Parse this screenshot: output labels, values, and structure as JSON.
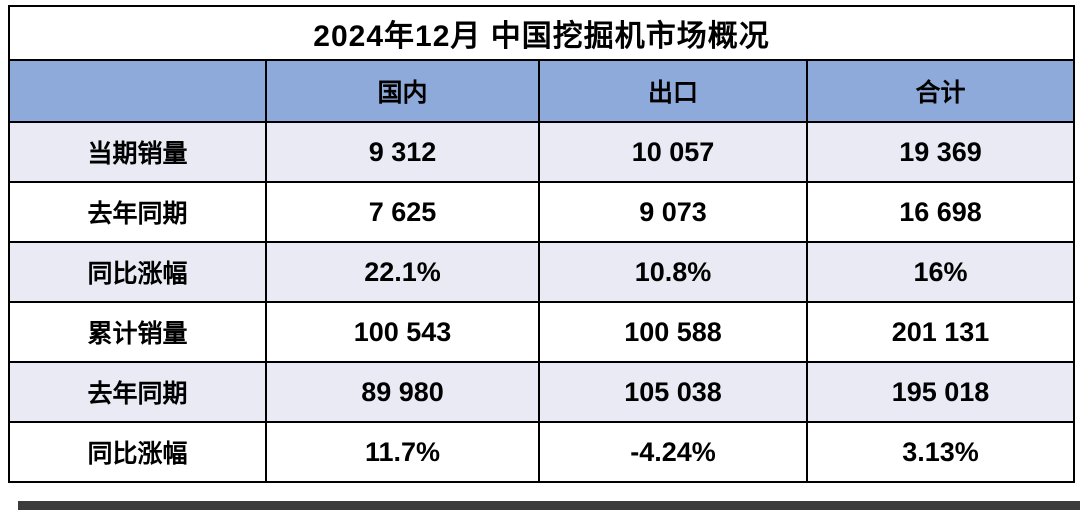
{
  "chart_data": {
    "type": "table",
    "title": "2024年12月 中国挖掘机市场概况",
    "columns": [
      "",
      "国内",
      "出口",
      "合计"
    ],
    "rows": [
      {
        "label": "当期销量",
        "values": [
          "9 312",
          "10 057",
          "19 369"
        ]
      },
      {
        "label": "去年同期",
        "values": [
          "7 625",
          "9 073",
          "16 698"
        ]
      },
      {
        "label": "同比涨幅",
        "values": [
          "22.1%",
          "10.8%",
          "16%"
        ]
      },
      {
        "label": "累计销量",
        "values": [
          "100 543",
          "100 588",
          "201 131"
        ]
      },
      {
        "label": "去年同期",
        "values": [
          "89 980",
          "105 038",
          "195 018"
        ]
      },
      {
        "label": "同比涨幅",
        "values": [
          "11.7%",
          "-4.24%",
          "3.13%"
        ]
      }
    ],
    "layout": {
      "legend": "none",
      "grid": "full-borders"
    }
  },
  "colors": {
    "header_bg": "#8EAADB",
    "row_alt_bg": "#E9EAF3",
    "row_bg": "#FFFFFF",
    "border": "#000000",
    "text": "#000000",
    "shadow": "#3B3B3B"
  }
}
